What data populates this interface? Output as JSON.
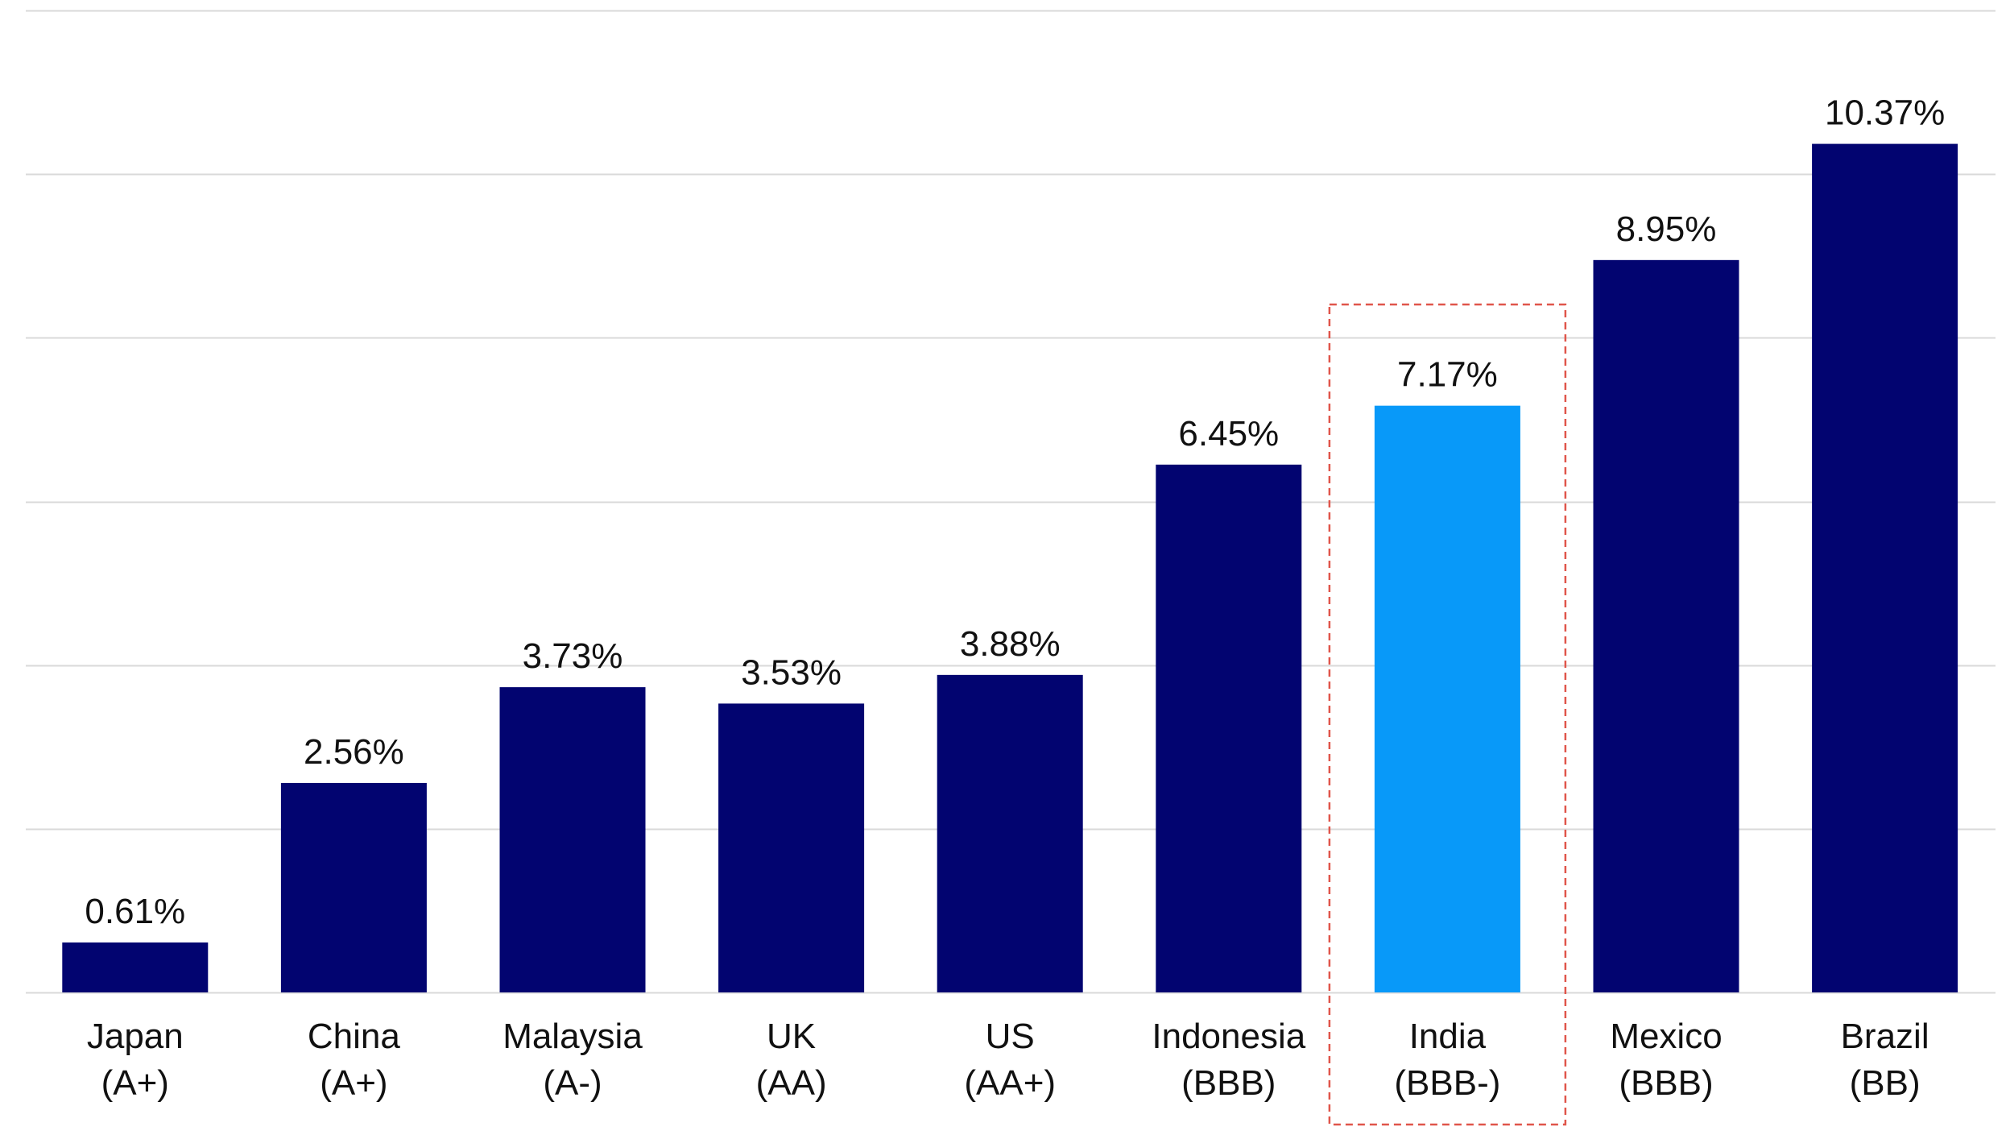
{
  "chart_data": {
    "type": "bar",
    "title": "",
    "xlabel": "",
    "ylabel": "",
    "categories": [
      {
        "name": "Japan",
        "rating": "(A+)"
      },
      {
        "name": "China",
        "rating": "(A+)"
      },
      {
        "name": "Malaysia",
        "rating": "(A-)"
      },
      {
        "name": "UK",
        "rating": "(AA)"
      },
      {
        "name": "US",
        "rating": "(AA+)"
      },
      {
        "name": "Indonesia",
        "rating": "(BBB)"
      },
      {
        "name": "India",
        "rating": "(BBB-)"
      },
      {
        "name": "Mexico",
        "rating": "(BBB)"
      },
      {
        "name": "Brazil",
        "rating": "(BB)"
      }
    ],
    "values": [
      0.61,
      2.56,
      3.73,
      3.53,
      3.88,
      6.45,
      7.17,
      8.95,
      10.37
    ],
    "value_labels": [
      "0.61%",
      "2.56%",
      "3.73%",
      "3.53%",
      "3.88%",
      "6.45%",
      "7.17%",
      "8.95%",
      "10.37%"
    ],
    "ylim": [
      0,
      12
    ],
    "grid_step": 2,
    "grid": true,
    "legend": "none",
    "highlight_index": 6,
    "colors": {
      "bar": "#020470",
      "highlight_bar": "#0899F9",
      "highlight_box": "#E0564B",
      "grid": "#D9D9D9",
      "text": "#111111"
    }
  }
}
